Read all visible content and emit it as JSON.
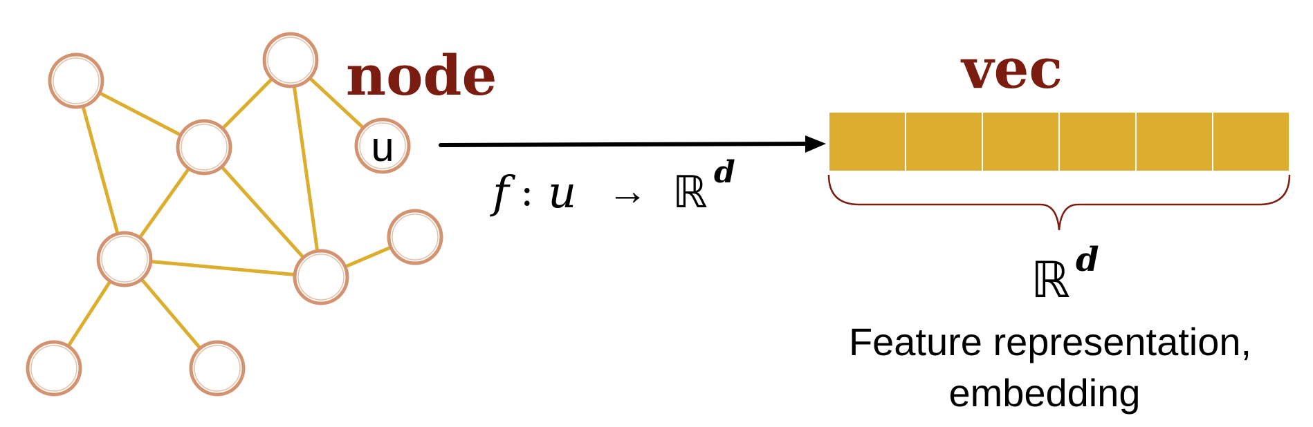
{
  "labels": {
    "node": "node",
    "vec": "vec",
    "node_u": "u",
    "mapping_f": "f",
    "mapping_colon": ":",
    "mapping_u": "u",
    "mapping_arrow": "→",
    "mapping_R": "ℝ",
    "mapping_d": "d",
    "space_R": "ℝ",
    "space_d": "d",
    "caption_line1": "Feature representation,",
    "caption_line2": "embedding"
  },
  "colors": {
    "title": "#7b1c10",
    "edge": "#dcae2e",
    "node_stroke": "#d39371",
    "vector_cell": "#ddad2f",
    "brace": "#7b1c10",
    "arrow": "#000000",
    "text": "#000000"
  },
  "graph": {
    "nodes": [
      {
        "id": "n1",
        "label": ""
      },
      {
        "id": "n2",
        "label": ""
      },
      {
        "id": "n3",
        "label": ""
      },
      {
        "id": "u",
        "label": "u"
      },
      {
        "id": "n5",
        "label": ""
      },
      {
        "id": "n6",
        "label": ""
      },
      {
        "id": "n7",
        "label": ""
      },
      {
        "id": "n8",
        "label": ""
      },
      {
        "id": "n9",
        "label": ""
      },
      {
        "id": "n10",
        "label": ""
      }
    ],
    "edges": [
      [
        "n1",
        "n2"
      ],
      [
        "n1",
        "n5"
      ],
      [
        "n2",
        "n3"
      ],
      [
        "n2",
        "n5"
      ],
      [
        "n2",
        "n6"
      ],
      [
        "n3",
        "u"
      ],
      [
        "n3",
        "n6"
      ],
      [
        "n5",
        "n6"
      ],
      [
        "n6",
        "n7"
      ],
      [
        "n5",
        "n8"
      ],
      [
        "n5",
        "n9"
      ]
    ]
  },
  "vector": {
    "cells": 6
  }
}
